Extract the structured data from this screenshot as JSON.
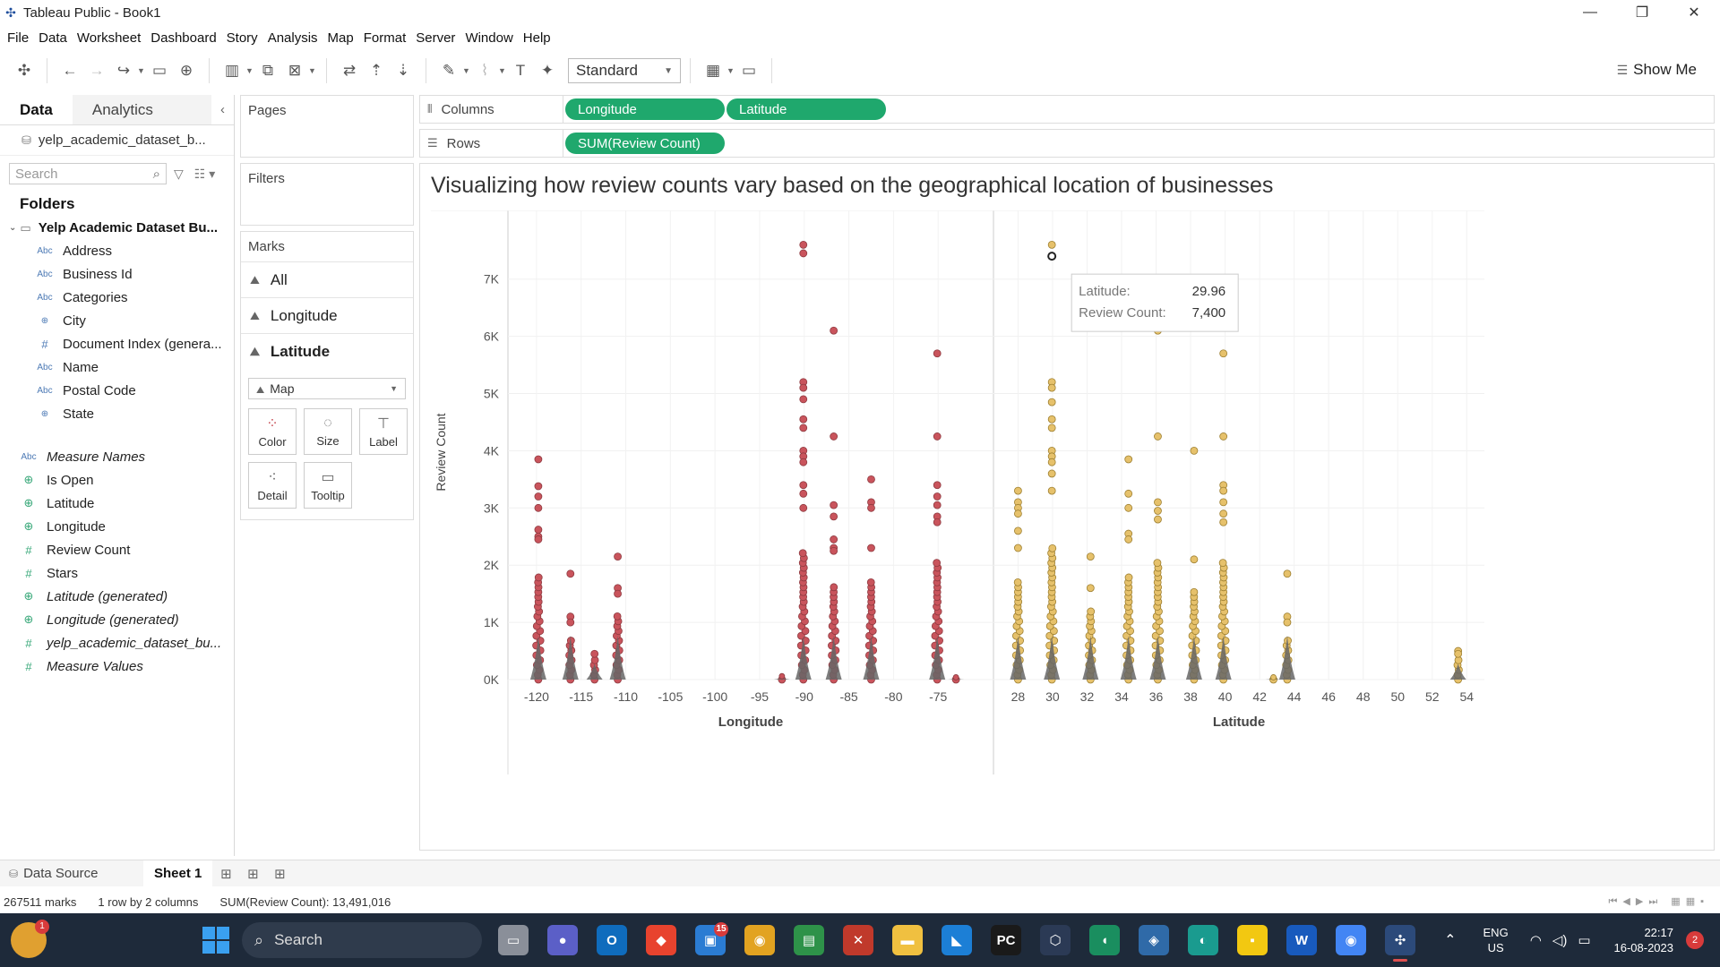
{
  "window": {
    "title": "Tableau Public - Book1",
    "controls": [
      "—",
      "❐",
      "✕"
    ]
  },
  "menu": [
    "File",
    "Data",
    "Worksheet",
    "Dashboard",
    "Story",
    "Analysis",
    "Map",
    "Format",
    "Server",
    "Window",
    "Help"
  ],
  "toolbar": {
    "fit": "Standard",
    "show_me": "Show Me"
  },
  "data_pane": {
    "tabs": {
      "data": "Data",
      "analytics": "Analytics"
    },
    "source": "yelp_academic_dataset_b...",
    "search_placeholder": "Search",
    "folders_title": "Folders",
    "folder_name": "Yelp Academic Dataset Bu...",
    "dimensions": [
      {
        "type": "Abc",
        "name": "Address"
      },
      {
        "type": "Abc",
        "name": "Business Id"
      },
      {
        "type": "Abc",
        "name": "Categories"
      },
      {
        "type": "geo",
        "name": "City"
      },
      {
        "type": "num",
        "name": "Document Index (genera..."
      },
      {
        "type": "Abc",
        "name": "Name"
      },
      {
        "type": "Abc",
        "name": "Postal Code"
      },
      {
        "type": "geo",
        "name": "State"
      }
    ],
    "measure_names": "Measure Names",
    "measures": [
      {
        "type": "geo",
        "name": "Is Open",
        "italic": false
      },
      {
        "type": "geo",
        "name": "Latitude",
        "italic": false
      },
      {
        "type": "geo",
        "name": "Longitude",
        "italic": false
      },
      {
        "type": "num",
        "name": "Review Count",
        "italic": false
      },
      {
        "type": "num",
        "name": "Stars",
        "italic": false
      },
      {
        "type": "geo",
        "name": "Latitude (generated)",
        "italic": true
      },
      {
        "type": "geo",
        "name": "Longitude (generated)",
        "italic": true
      },
      {
        "type": "num",
        "name": "yelp_academic_dataset_bu...",
        "italic": true
      },
      {
        "type": "num",
        "name": "Measure Values",
        "italic": true
      }
    ]
  },
  "cards": {
    "pages": "Pages",
    "filters": "Filters",
    "marks": "Marks",
    "marks_rows": [
      "All",
      "Longitude",
      "Latitude"
    ],
    "mark_type": "Map",
    "mark_buttons": [
      "Color",
      "Size",
      "Label",
      "Detail",
      "Tooltip"
    ]
  },
  "shelves": {
    "columns_label": "Columns",
    "columns_pills": [
      "Longitude",
      "Latitude"
    ],
    "rows_label": "Rows",
    "rows_pills": [
      "SUM(Review Count)"
    ]
  },
  "viz": {
    "title": "Visualizing how review counts vary based on the geographical location of businesses"
  },
  "tooltip": {
    "label1": "Latitude:",
    "value1": "29.96",
    "label2": "Review Count:",
    "value2": "7,400"
  },
  "chart_data": [
    {
      "type": "scatter",
      "xlabel": "Longitude",
      "ylabel": "Review Count",
      "x_ticks": [
        -120,
        -115,
        -110,
        -105,
        -100,
        -95,
        -90,
        -85,
        -80,
        -75
      ],
      "xlim": [
        -122,
        -70
      ],
      "y_ticks": [
        "0K",
        "1K",
        "2K",
        "3K",
        "4K",
        "5K",
        "6K",
        "7K"
      ],
      "ylim": [
        0,
        7950
      ],
      "color": "#c9545c",
      "clusters": [
        {
          "x": -119.8,
          "max": 3850,
          "outliers": [
            3850,
            3380,
            3200,
            3000,
            2620,
            2500,
            2450
          ]
        },
        {
          "x": -116.2,
          "max": 1850,
          "outliers": [
            1850,
            1100,
            1000
          ]
        },
        {
          "x": -113.5,
          "max": 500,
          "outliers": [
            450
          ]
        },
        {
          "x": -110.9,
          "max": 2150,
          "outliers": [
            2150,
            1600,
            1500
          ]
        },
        {
          "x": -92.5,
          "max": 60,
          "outliers": []
        },
        {
          "x": -90.1,
          "max": 7600,
          "outliers": [
            7600,
            7450,
            5200,
            5100,
            4900,
            4550,
            4400,
            4000,
            3900,
            3800,
            3400,
            3250,
            3000
          ]
        },
        {
          "x": -86.7,
          "max": 6100,
          "outliers": [
            6100,
            4250,
            3050,
            2850,
            2450,
            2300,
            2250
          ]
        },
        {
          "x": -82.5,
          "max": 3500,
          "outliers": [
            3500,
            3100,
            3000,
            2300
          ]
        },
        {
          "x": -75.1,
          "max": 5700,
          "outliers": [
            5700,
            4250,
            3400,
            3200,
            3050,
            2850,
            2750
          ]
        },
        {
          "x": -73.0,
          "max": 40,
          "outliers": []
        }
      ]
    },
    {
      "type": "scatter",
      "xlabel": "Latitude",
      "ylabel": "Review Count",
      "x_ticks": [
        28,
        30,
        32,
        34,
        36,
        38,
        40,
        42,
        44,
        46,
        48,
        50,
        52,
        54
      ],
      "xlim": [
        27.2,
        54.4
      ],
      "y_ticks": [
        "0K",
        "1K",
        "2K",
        "3K",
        "4K",
        "5K",
        "6K",
        "7K"
      ],
      "ylim": [
        0,
        7950
      ],
      "color": "#e6c16b",
      "clusters": [
        {
          "x": 28.0,
          "max": 3300,
          "outliers": [
            3300,
            3100,
            3000,
            2900,
            2600,
            2300
          ]
        },
        {
          "x": 29.96,
          "max": 7600,
          "outliers": [
            7600,
            7400,
            5200,
            5100,
            4850,
            4550,
            4400,
            4000,
            3900,
            3800,
            3600,
            3300
          ]
        },
        {
          "x": 32.2,
          "max": 2150,
          "outliers": [
            2150,
            1600
          ]
        },
        {
          "x": 34.4,
          "max": 3850,
          "outliers": [
            3850,
            3250,
            3000,
            2550,
            2450
          ]
        },
        {
          "x": 36.1,
          "max": 6100,
          "outliers": [
            6100,
            4250,
            3100,
            2950,
            2800
          ]
        },
        {
          "x": 38.2,
          "max": 4000,
          "outliers": [
            4000,
            2100
          ]
        },
        {
          "x": 39.9,
          "max": 5700,
          "outliers": [
            5700,
            4250,
            3400,
            3300,
            3100,
            2900,
            2750
          ]
        },
        {
          "x": 42.8,
          "max": 40,
          "outliers": []
        },
        {
          "x": 43.6,
          "max": 1850,
          "outliers": [
            1850,
            1100,
            1000
          ]
        },
        {
          "x": 53.5,
          "max": 500,
          "outliers": [
            500,
            450
          ]
        }
      ]
    }
  ],
  "sheet_tabs": {
    "data_source": "Data Source",
    "sheet1": "Sheet 1"
  },
  "status": {
    "marks": "267511 marks",
    "dims": "1 row by 2 columns",
    "sum": "SUM(Review Count): 13,491,016"
  },
  "taskbar": {
    "weather_badge": "1",
    "search": "Search",
    "lang1": "ENG",
    "lang2": "US",
    "time": "22:17",
    "date": "16-08-2023",
    "notifications": "2",
    "apps": [
      {
        "name": "file-explorer",
        "glyph": "▭",
        "color": "#8a8f99"
      },
      {
        "name": "teams",
        "glyph": "●",
        "color": "#5b5fc7"
      },
      {
        "name": "outlook",
        "glyph": "O",
        "color": "#0f6cbd"
      },
      {
        "name": "app-red",
        "glyph": "◆",
        "color": "#e8432e"
      },
      {
        "name": "store",
        "glyph": "▣",
        "color": "#2b7cd3",
        "badge": "15"
      },
      {
        "name": "chrome",
        "glyph": "◉",
        "color": "#e2a321"
      },
      {
        "name": "excel-app",
        "glyph": "▤",
        "color": "#2e9249"
      },
      {
        "name": "app-x",
        "glyph": "✕",
        "color": "#c0392b"
      },
      {
        "name": "folder",
        "glyph": "▬",
        "color": "#f0c040"
      },
      {
        "name": "vscode",
        "glyph": "◣",
        "color": "#1c7fd6"
      },
      {
        "name": "pycharm",
        "glyph": "PC",
        "color": "#1a1a1a"
      },
      {
        "name": "app-hex",
        "glyph": "⬡",
        "color": "#2b3a55"
      },
      {
        "name": "app-leaf",
        "glyph": "◖",
        "color": "#1a8e5f"
      },
      {
        "name": "app-blue",
        "glyph": "◈",
        "color": "#2f6aa8"
      },
      {
        "name": "edge",
        "glyph": "◐",
        "color": "#1a9b8f"
      },
      {
        "name": "sticky",
        "glyph": "▪",
        "color": "#f2c811"
      },
      {
        "name": "word",
        "glyph": "W",
        "color": "#185abd"
      },
      {
        "name": "chrome-2",
        "glyph": "◉",
        "color": "#4285f4"
      },
      {
        "name": "tableau",
        "glyph": "✣",
        "color": "#2c4a7a",
        "active": true
      }
    ]
  }
}
